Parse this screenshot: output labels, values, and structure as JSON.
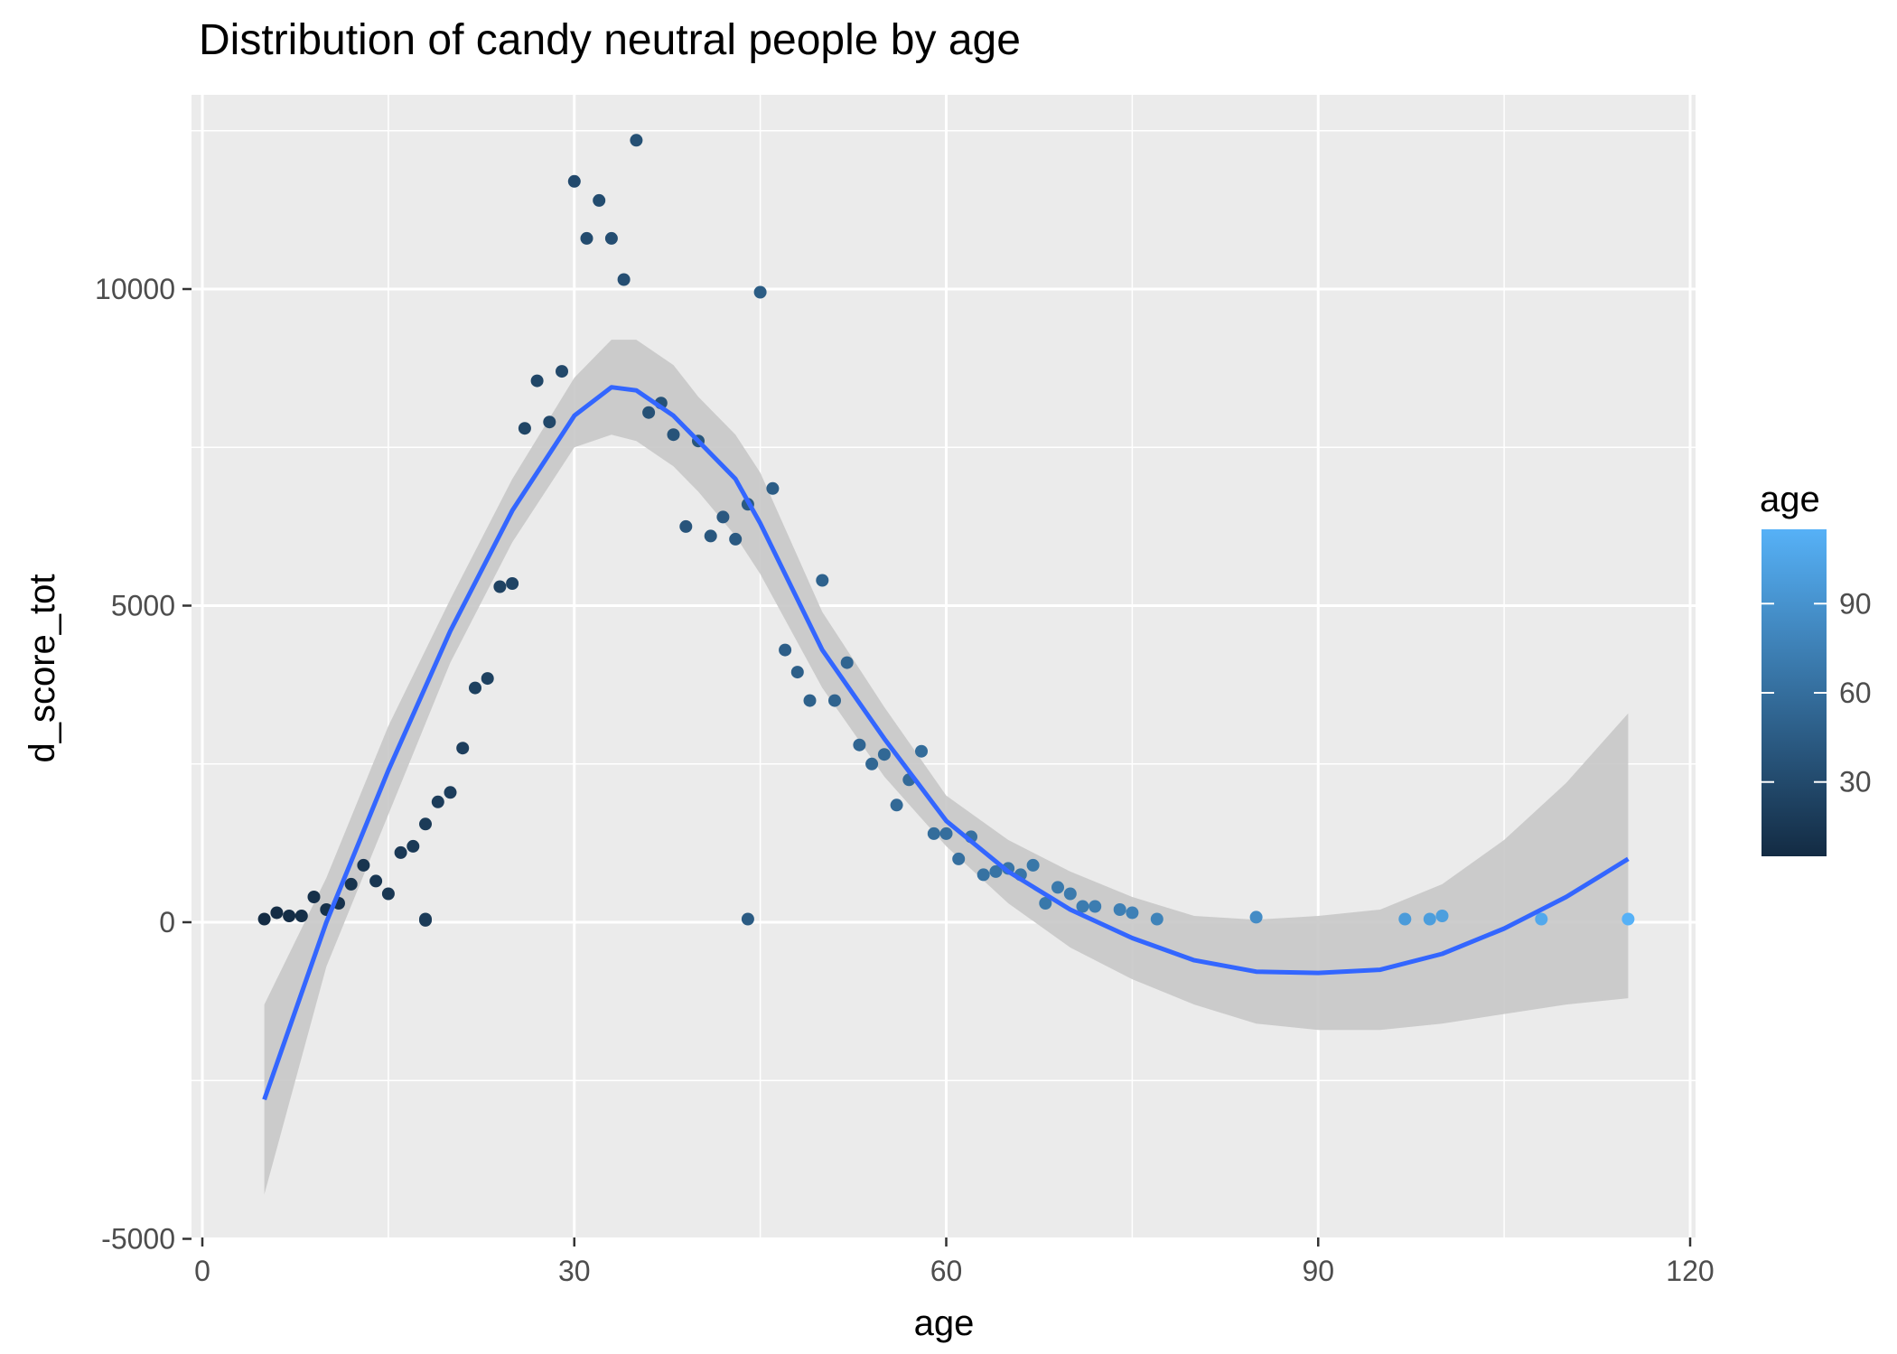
{
  "chart_data": {
    "type": "scatter",
    "title": "Distribution of candy neutral people by age",
    "xlabel": "age",
    "ylabel": "d_score_tot",
    "xlim": [
      0,
      120
    ],
    "ylim": [
      -5000,
      12500
    ],
    "x_ticks": [
      0,
      30,
      60,
      90,
      120
    ],
    "y_ticks": [
      -5000,
      0,
      5000,
      10000
    ],
    "x_tick_labels": [
      "0",
      "30",
      "60",
      "90",
      "120"
    ],
    "y_tick_labels": [
      "-5000",
      "0",
      "5000",
      "10000"
    ],
    "grid": true,
    "colors": {
      "panel_background": "#ebebeb",
      "grid": "#ffffff",
      "smooth_line": "#3366ff",
      "ribbon": "#c8c8c8",
      "color_low": "#132b43",
      "color_high": "#56b1f7"
    },
    "legend": {
      "title": "age",
      "position": "right",
      "type": "colorbar",
      "range": [
        5,
        115
      ],
      "breaks": [
        30,
        60,
        90
      ],
      "break_labels": [
        "30",
        "60",
        "90"
      ]
    },
    "points": [
      [
        5,
        50
      ],
      [
        6,
        150
      ],
      [
        7,
        100
      ],
      [
        8,
        100
      ],
      [
        9,
        400
      ],
      [
        10,
        200
      ],
      [
        11,
        300
      ],
      [
        12,
        600
      ],
      [
        13,
        900
      ],
      [
        14,
        650
      ],
      [
        15,
        450
      ],
      [
        16,
        1100
      ],
      [
        17,
        1200
      ],
      [
        18,
        50
      ],
      [
        18,
        30
      ],
      [
        18,
        1550
      ],
      [
        19,
        1900
      ],
      [
        20,
        2050
      ],
      [
        21,
        2750
      ],
      [
        22,
        3700
      ],
      [
        23,
        3850
      ],
      [
        24,
        5300
      ],
      [
        25,
        5350
      ],
      [
        26,
        7800
      ],
      [
        27,
        8550
      ],
      [
        28,
        7900
      ],
      [
        29,
        8700
      ],
      [
        30,
        11700
      ],
      [
        31,
        10800
      ],
      [
        32,
        11400
      ],
      [
        33,
        10800
      ],
      [
        34,
        10150
      ],
      [
        35,
        12350
      ],
      [
        36,
        8050
      ],
      [
        37,
        8200
      ],
      [
        38,
        7700
      ],
      [
        39,
        6250
      ],
      [
        40,
        7600
      ],
      [
        41,
        6100
      ],
      [
        42,
        6400
      ],
      [
        43,
        6050
      ],
      [
        44,
        6600
      ],
      [
        44,
        50
      ],
      [
        45,
        9950
      ],
      [
        46,
        6850
      ],
      [
        47,
        4300
      ],
      [
        48,
        3950
      ],
      [
        49,
        3500
      ],
      [
        50,
        5400
      ],
      [
        51,
        3500
      ],
      [
        52,
        4100
      ],
      [
        53,
        2800
      ],
      [
        54,
        2500
      ],
      [
        55,
        2650
      ],
      [
        56,
        1850
      ],
      [
        57,
        2250
      ],
      [
        58,
        2700
      ],
      [
        59,
        1400
      ],
      [
        60,
        1400
      ],
      [
        61,
        1000
      ],
      [
        62,
        1350
      ],
      [
        63,
        750
      ],
      [
        64,
        800
      ],
      [
        65,
        850
      ],
      [
        66,
        750
      ],
      [
        67,
        900
      ],
      [
        68,
        300
      ],
      [
        69,
        550
      ],
      [
        70,
        450
      ],
      [
        71,
        250
      ],
      [
        72,
        250
      ],
      [
        74,
        200
      ],
      [
        75,
        150
      ],
      [
        77,
        50
      ],
      [
        85,
        80
      ],
      [
        97,
        50
      ],
      [
        99,
        50
      ],
      [
        100,
        100
      ],
      [
        108,
        50
      ],
      [
        115,
        50
      ]
    ],
    "smooth": {
      "x": [
        5,
        10,
        15,
        20,
        25,
        30,
        33,
        35,
        38,
        40,
        43,
        45,
        50,
        55,
        60,
        65,
        70,
        75,
        80,
        85,
        90,
        95,
        100,
        105,
        110,
        115
      ],
      "y": [
        -2800,
        0,
        2400,
        4600,
        6500,
        8000,
        8450,
        8400,
        8000,
        7600,
        7000,
        6300,
        4300,
        2900,
        1600,
        800,
        200,
        -250,
        -600,
        -780,
        -800,
        -750,
        -500,
        -100,
        400,
        1000
      ],
      "lower": [
        -4300,
        -700,
        1700,
        4100,
        6000,
        7500,
        7700,
        7600,
        7200,
        6800,
        6100,
        5500,
        3700,
        2300,
        1200,
        300,
        -400,
        -900,
        -1300,
        -1600,
        -1700,
        -1700,
        -1600,
        -1450,
        -1300,
        -1200
      ],
      "upper": [
        -1300,
        700,
        3100,
        5100,
        7000,
        8600,
        9200,
        9200,
        8800,
        8300,
        7700,
        7100,
        4900,
        3400,
        2000,
        1300,
        800,
        400,
        100,
        40,
        100,
        200,
        600,
        1300,
        2200,
        3300
      ]
    }
  }
}
